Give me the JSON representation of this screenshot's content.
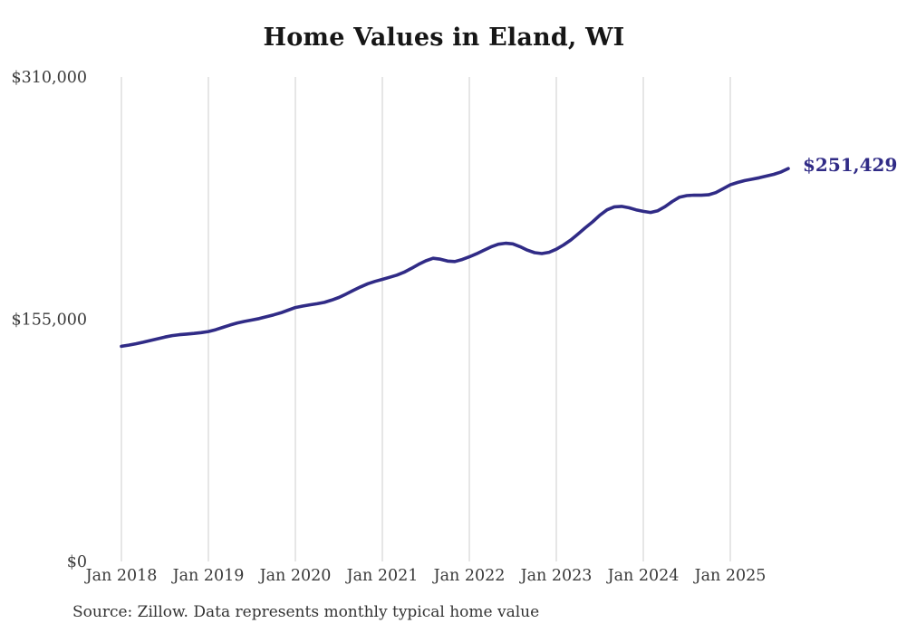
{
  "chart_data": {
    "type": "line",
    "title": "Home Values in Eland, WI",
    "source": "Source: Zillow. Data represents monthly typical home value",
    "end_label": "$251,429",
    "latest_value": 251429,
    "x_unit": "month",
    "x_first": "Jan 2018",
    "x_last": "Sep 2025",
    "x_tick_labels": [
      "Jan 2018",
      "Jan 2019",
      "Jan 2020",
      "Jan 2021",
      "Jan 2022",
      "Jan 2023",
      "Jan 2024",
      "Jan 2025"
    ],
    "y_ticks": [
      {
        "value": 0,
        "label": "$0"
      },
      {
        "value": 155000,
        "label": "$155,000"
      },
      {
        "value": 310000,
        "label": "$310,000"
      }
    ],
    "ylim": [
      0,
      310000
    ],
    "grid": "vertical-only",
    "legend": "none",
    "colors": {
      "line": "#302b86",
      "accent": "#302b86",
      "grid": "#cccccc"
    },
    "values": [
      137700,
      138400,
      139300,
      140300,
      141400,
      142500,
      143600,
      144500,
      145100,
      145500,
      145900,
      146400,
      147100,
      148300,
      149800,
      151300,
      152600,
      153600,
      154500,
      155400,
      156600,
      157800,
      159100,
      160800,
      162500,
      163400,
      164200,
      164900,
      165800,
      167200,
      168900,
      171100,
      173500,
      175700,
      177700,
      179200,
      180500,
      181800,
      183200,
      185100,
      187500,
      190100,
      192400,
      194000,
      193400,
      192200,
      191900,
      193200,
      194900,
      196900,
      199100,
      201300,
      203000,
      203600,
      203200,
      201400,
      199200,
      197600,
      197000,
      197800,
      199800,
      202500,
      205700,
      209500,
      213500,
      217300,
      221500,
      225000,
      226900,
      227200,
      226300,
      225000,
      224000,
      223300,
      224400,
      227000,
      230300,
      233100,
      234100,
      234400,
      234300,
      234600,
      236000,
      238500,
      241000,
      242500,
      243700,
      244600,
      245500,
      246600,
      247700,
      249200,
      251429
    ]
  }
}
